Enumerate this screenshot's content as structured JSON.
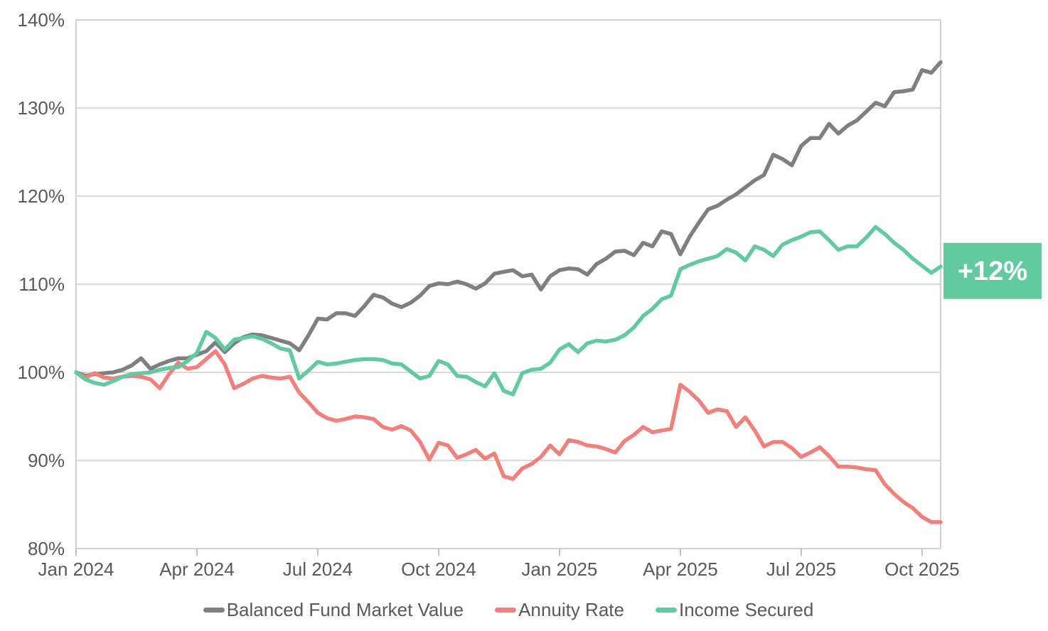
{
  "chart_data": {
    "type": "line",
    "title": "",
    "grid": true,
    "legend_position": "bottom",
    "x_axis": {
      "label": "",
      "tick_labels": [
        "Jan 2024",
        "Apr 2024",
        "Jul 2024",
        "Oct 2024",
        "Jan 2025",
        "Apr 2025",
        "Jul 2025",
        "Oct 2025"
      ],
      "tick_point_indices": [
        0,
        13,
        26,
        39,
        52,
        65,
        78,
        91
      ],
      "points_are": "weekly observations from Jan 2024 to mid-Oct 2025"
    },
    "y_axis": {
      "label": "",
      "unit": "%",
      "min": 80,
      "max": 140,
      "step": 10,
      "tick_labels": [
        "80%",
        "90%",
        "100%",
        "110%",
        "120%",
        "130%",
        "140%"
      ]
    },
    "series": [
      {
        "name": "Balanced Fund Market Value",
        "color": "#7f7f7f",
        "values": [
          100.0,
          99.6,
          99.8,
          99.9,
          100.0,
          100.3,
          100.8,
          101.6,
          100.4,
          100.9,
          101.3,
          101.6,
          101.6,
          102.0,
          102.4,
          103.4,
          102.3,
          103.3,
          104.0,
          104.3,
          104.2,
          103.9,
          103.6,
          103.3,
          102.5,
          104.2,
          106.1,
          106.0,
          106.7,
          106.7,
          106.4,
          107.5,
          108.8,
          108.5,
          107.8,
          107.4,
          107.9,
          108.7,
          109.8,
          110.1,
          110.0,
          110.3,
          110.0,
          109.5,
          110.1,
          111.2,
          111.4,
          111.6,
          110.9,
          111.1,
          109.4,
          110.9,
          111.6,
          111.8,
          111.7,
          111.1,
          112.3,
          112.9,
          113.7,
          113.8,
          113.3,
          114.7,
          114.3,
          116.0,
          115.7,
          113.4,
          115.4,
          117.0,
          118.5,
          118.9,
          119.6,
          120.2,
          121.0,
          121.8,
          122.4,
          124.7,
          124.2,
          123.5,
          125.7,
          126.6,
          126.6,
          128.2,
          127.1,
          128.0,
          128.6,
          129.6,
          130.6,
          130.2,
          131.8,
          131.9,
          132.1,
          134.3,
          134.0,
          135.2
        ]
      },
      {
        "name": "Annuity Rate",
        "color": "#f0807c",
        "values": [
          100.0,
          99.4,
          99.9,
          99.4,
          99.3,
          99.5,
          99.6,
          99.5,
          99.2,
          98.2,
          99.8,
          101.1,
          100.4,
          100.6,
          101.5,
          102.4,
          100.9,
          98.2,
          98.7,
          99.3,
          99.6,
          99.4,
          99.3,
          99.5,
          97.7,
          96.6,
          95.4,
          94.8,
          94.5,
          94.7,
          95.0,
          94.9,
          94.7,
          93.8,
          93.5,
          93.9,
          93.4,
          92.1,
          90.1,
          92.0,
          91.7,
          90.3,
          90.7,
          91.2,
          90.2,
          90.8,
          88.2,
          87.9,
          89.1,
          89.6,
          90.4,
          91.7,
          90.7,
          92.3,
          92.1,
          91.7,
          91.6,
          91.3,
          90.9,
          92.2,
          92.9,
          93.8,
          93.2,
          93.4,
          93.6,
          98.6,
          97.8,
          96.8,
          95.4,
          95.8,
          95.6,
          93.8,
          94.9,
          93.4,
          91.6,
          92.1,
          92.1,
          91.4,
          90.4,
          90.9,
          91.5,
          90.5,
          89.3,
          89.3,
          89.2,
          89.0,
          88.9,
          87.3,
          86.2,
          85.3,
          84.6,
          83.6,
          83.0,
          83.0
        ]
      },
      {
        "name": "Income Secured",
        "color": "#62c9a0",
        "values": [
          100.0,
          99.2,
          98.8,
          98.6,
          99.0,
          99.5,
          99.8,
          99.9,
          100.0,
          100.3,
          100.5,
          100.6,
          101.3,
          102.2,
          104.6,
          103.9,
          102.6,
          103.7,
          103.9,
          104.1,
          103.8,
          103.3,
          102.7,
          102.5,
          99.3,
          100.2,
          101.2,
          100.9,
          101.0,
          101.2,
          101.4,
          101.5,
          101.5,
          101.4,
          101.0,
          100.9,
          100.1,
          99.3,
          99.6,
          101.3,
          100.9,
          99.6,
          99.5,
          98.9,
          98.4,
          99.9,
          97.9,
          97.5,
          99.9,
          100.3,
          100.4,
          101.1,
          102.6,
          103.2,
          102.3,
          103.3,
          103.6,
          103.5,
          103.7,
          104.2,
          105.1,
          106.4,
          107.2,
          108.3,
          108.7,
          111.7,
          112.2,
          112.6,
          112.9,
          113.2,
          114.0,
          113.6,
          112.7,
          114.3,
          113.9,
          113.2,
          114.5,
          115.0,
          115.4,
          115.9,
          116.0,
          115.0,
          113.9,
          114.3,
          114.3,
          115.3,
          116.5,
          115.7,
          114.7,
          113.9,
          112.9,
          112.1,
          111.3,
          112.0
        ]
      }
    ],
    "annotation": {
      "label": "+12%",
      "background_color": "#62c9a0",
      "text_color": "#ffffff",
      "attached_to": "Income Secured line end"
    },
    "colors": {
      "background": "#ffffff",
      "gridline": "#d9d9d9",
      "plot_border": "#d2d2d2",
      "axis_tick": "#bfbfbf",
      "axis_text": "#595959"
    }
  }
}
